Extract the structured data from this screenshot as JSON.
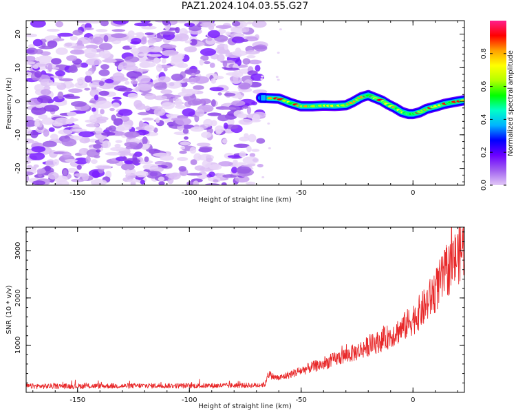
{
  "title": "PAZ1.2024.104.03.55.G27",
  "colors": {
    "snr_line": "#e8292a",
    "blob": "#8a2be2",
    "colormap": [
      "#e2c8f6",
      "#a060f0",
      "#6b00ff",
      "#0000ff",
      "#00b4ff",
      "#00ffc8",
      "#00ff00",
      "#b4ff00",
      "#ffff00",
      "#ffa000",
      "#ff0000",
      "#ff1f8c"
    ]
  },
  "chart_data": [
    {
      "type": "heatmap",
      "xlabel": "Height of straight line (km)",
      "ylabel": "Frequency (Hz)",
      "xlim": [
        -173,
        23
      ],
      "ylim": [
        -25,
        24
      ],
      "x_ticks": [
        -150,
        -100,
        -50,
        0
      ],
      "y_ticks": [
        -20,
        -10,
        0,
        10,
        20
      ],
      "noise_region_x": [
        -173,
        -68
      ],
      "signal_trace": {
        "x": [
          -68,
          -60,
          -55,
          -50,
          -45,
          -40,
          -35,
          -30,
          -27,
          -23,
          -20,
          -17,
          -14,
          -11,
          -8,
          -5,
          -2,
          0,
          3,
          6,
          10,
          14,
          18,
          23
        ],
        "freq": [
          1.0,
          0.8,
          -0.5,
          -1.5,
          -1.5,
          -1.3,
          -1.4,
          -1.2,
          -0.3,
          1.2,
          1.8,
          1.0,
          0.2,
          -1.0,
          -2.0,
          -3.2,
          -3.8,
          -3.8,
          -3.3,
          -2.3,
          -1.6,
          -0.8,
          -0.3,
          0.3
        ]
      },
      "colorbar": {
        "label": "Normalized spectral amplitude",
        "range": [
          0.0,
          1.0
        ],
        "ticks": [
          0.0,
          0.2,
          0.4,
          0.6,
          0.8
        ]
      }
    },
    {
      "type": "line",
      "xlabel": "Height of straight line (km)",
      "ylabel": "SNR (10 * v/v)",
      "xlim": [
        -173,
        23
      ],
      "ylim": [
        0,
        3500
      ],
      "x_ticks": [
        -150,
        -100,
        -50,
        0
      ],
      "y_ticks": [
        1000,
        2000,
        3000
      ],
      "series": [
        {
          "x": [
            -173,
            -160,
            -150,
            -140,
            -130,
            -120,
            -110,
            -100,
            -90,
            -80,
            -70,
            -66,
            -65,
            -62,
            -60,
            -55,
            -50,
            -45,
            -40,
            -35,
            -30,
            -25,
            -20,
            -15,
            -10,
            -5,
            0,
            5,
            10,
            15,
            20,
            23
          ],
          "values": [
            130,
            130,
            130,
            135,
            135,
            140,
            140,
            140,
            140,
            145,
            150,
            170,
            400,
            320,
            300,
            380,
            460,
            540,
            600,
            700,
            780,
            860,
            980,
            1080,
            1200,
            1350,
            1550,
            1800,
            2150,
            2550,
            2900,
            3100
          ]
        }
      ]
    }
  ]
}
